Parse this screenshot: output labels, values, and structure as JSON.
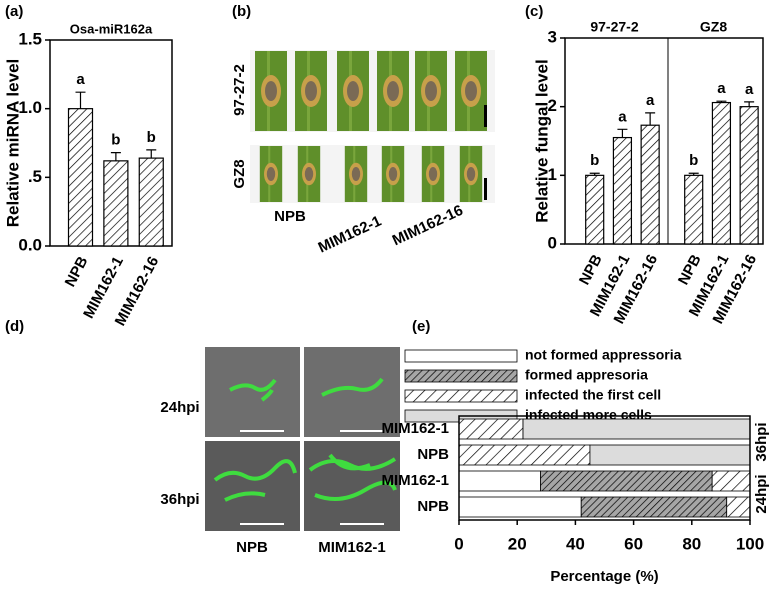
{
  "panel_labels": [
    "(a)",
    "(b)",
    "(c)",
    "(d)",
    "(e)"
  ],
  "image_b": {
    "rows": [
      "97-27-2",
      "GZ8"
    ],
    "columns": [
      "NPB",
      "MIM162-1",
      "MIM162-16"
    ]
  },
  "image_d": {
    "rows": [
      "24hpi",
      "36hpi"
    ],
    "columns": [
      "NPB",
      "MIM162-1"
    ]
  },
  "chart_data": [
    {
      "type": "bar",
      "title": "Osa-miR162a",
      "y_label": "Relative miRNA level",
      "categories": [
        "NPB",
        "MIM162-1",
        "MIM162-16"
      ],
      "values": [
        1.0,
        0.62,
        0.64
      ],
      "errors": [
        0.12,
        0.06,
        0.06
      ],
      "annotations": [
        "a",
        "b",
        "b"
      ],
      "color": "#ffffff",
      "hatch": true,
      "ylim": [
        0,
        1.5
      ],
      "yticks": [
        {
          "value": 0,
          "label": "0.0"
        },
        {
          "value": 0.5,
          "label": ".5"
        },
        {
          "value": 1,
          "label": "1.0"
        },
        {
          "value": 1.5,
          "label": "1.5"
        }
      ]
    },
    {
      "type": "bar",
      "y_label": "Relative fungal level",
      "groups": [
        "97-27-2",
        "GZ8"
      ],
      "categories": [
        "NPB",
        "MIM162-1",
        "MIM162-16",
        "NPB",
        "MIM162-1",
        "MIM162-16"
      ],
      "values": [
        1.0,
        1.55,
        1.73,
        1.0,
        2.06,
        2.0
      ],
      "errors": [
        0.03,
        0.12,
        0.18,
        0.03,
        0.02,
        0.07
      ],
      "annotations": [
        "b",
        "a",
        "a",
        "b",
        "a",
        "a"
      ],
      "color": "#ffffff",
      "hatch": true,
      "ylim": [
        0,
        3
      ],
      "yticks": [
        0,
        1,
        2,
        3
      ]
    },
    {
      "type": "stacked_barh",
      "x_label": "Percentage (%)",
      "groups": [
        "36hpi",
        "24hpi"
      ],
      "categories": [
        "MIM162-1",
        "NPB",
        "MIM162-1",
        "NPB"
      ],
      "series": [
        {
          "name": "not formed appressoria",
          "color": "#ffffff",
          "hatch": false,
          "values": [
            0,
            0,
            28,
            42
          ]
        },
        {
          "name": "formed appresoria",
          "color": "#a6a6a6",
          "hatch": true,
          "values": [
            0,
            0,
            59,
            50
          ]
        },
        {
          "name": "infected the first cell",
          "color": "#ffffff",
          "hatch": true,
          "values": [
            22,
            45,
            13,
            8
          ]
        },
        {
          "name": "infected more cells",
          "color": "#dcdcdc",
          "hatch": false,
          "values": [
            78,
            55,
            0,
            0
          ]
        }
      ],
      "xlim": [
        0,
        100
      ],
      "xticks": [
        0,
        20,
        40,
        60,
        80,
        100
      ]
    }
  ]
}
